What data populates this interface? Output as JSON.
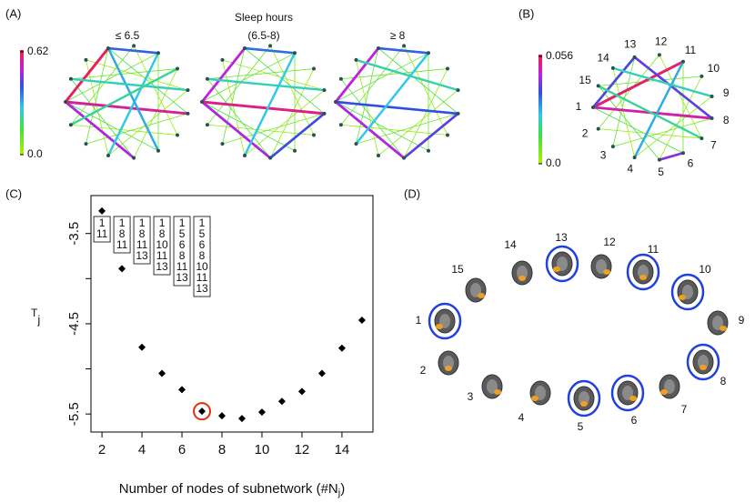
{
  "panel_labels": [
    "(A)",
    "(B)",
    "(C)",
    "(D)"
  ],
  "panel_a": {
    "title": "Sleep hours",
    "groups": [
      "≤ 6.5",
      "(6.5-8)",
      "≥ 8"
    ],
    "colorbar_ticks": [
      {
        "value": 0,
        "label": "0.0"
      },
      0.62
    ]
  },
  "panel_b": {
    "node_labels": [
      1,
      2,
      3,
      4,
      5,
      6,
      7,
      8,
      9,
      10,
      11,
      12,
      13,
      14,
      15
    ],
    "colorbar_ticks": [
      {
        "value": 0,
        "label": "0.0"
      },
      0.056
    ]
  },
  "panel_d": {
    "region_labels": [
      1,
      2,
      3,
      4,
      5,
      6,
      7,
      8,
      9,
      10,
      11,
      12,
      13,
      14,
      15
    ],
    "highlighted": [
      1,
      5,
      6,
      8,
      10,
      11,
      13
    ]
  },
  "chart_data": {
    "type": "scatter",
    "xlabel": "Number of nodes of subnetwork (#N",
    "xlabel_sub": "j",
    "xlabel_end": ")",
    "ylabel": "T",
    "ylabel_sub": "j",
    "x": [
      2,
      3,
      4,
      5,
      6,
      7,
      8,
      9,
      10,
      11,
      12,
      13,
      14,
      15
    ],
    "values": [
      -3.25,
      -3.89,
      -4.76,
      -5.05,
      -5.23,
      -5.47,
      -5.52,
      -5.55,
      -5.48,
      -5.36,
      -5.25,
      -5.05,
      -4.77,
      -4.46
    ],
    "color": "#000000",
    "highlight_index": 5,
    "highlight_color": "#e03010",
    "subnetworks": [
      [
        1,
        11
      ],
      [
        1,
        8,
        11
      ],
      [
        1,
        8,
        11,
        13
      ],
      [
        1,
        8,
        10,
        11,
        13
      ],
      [
        1,
        5,
        6,
        8,
        11,
        13
      ],
      [
        1,
        5,
        6,
        8,
        10,
        11,
        13
      ]
    ],
    "xlim": [
      1.45,
      15.55
    ],
    "ylim": [
      -5.7,
      -3.08
    ],
    "xticks": [
      2,
      4,
      6,
      8,
      10,
      12,
      14
    ],
    "yticks": [
      -3.5,
      -4.5,
      -5.5
    ],
    "yminor_ticks": [
      -4,
      -5
    ]
  }
}
